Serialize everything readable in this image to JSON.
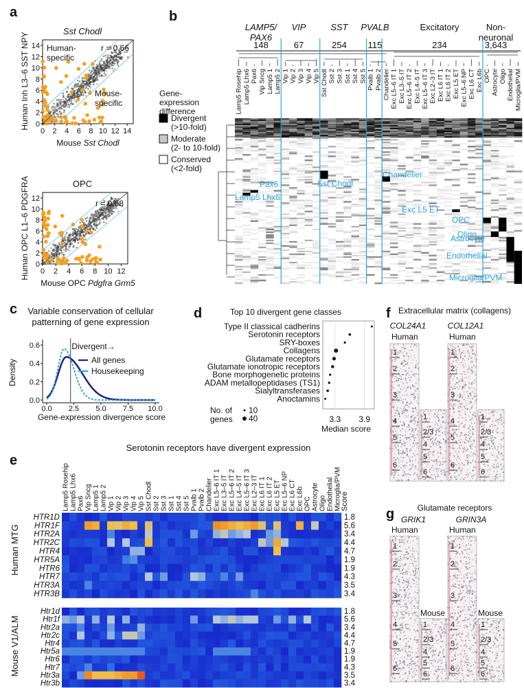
{
  "panels": {
    "a": {
      "label": "a",
      "top": {
        "title": "Sst Chodl",
        "r": "r = 0.66",
        "ylabel": "Human Inh L3–6 SST NPY",
        "xlabel_prefix": "Mouse ",
        "xlabel_italic": "Sst Chodl",
        "human_specific": "Human-\nspecific",
        "mouse_specific": "Mouse-\nspecific",
        "ticks": [
          "0",
          "2",
          "4",
          "6",
          "8",
          "10",
          "12",
          "14"
        ]
      },
      "bottom": {
        "title": "OPC",
        "r": "r = 0.68",
        "ylabel": "Human OPC L1–6 PDGFRA",
        "xlabel_prefix": "Mouse OPC ",
        "xlabel_italic": "Pdgfra Grm5",
        "ticks": [
          "0",
          "2",
          "4",
          "6",
          "8",
          "10",
          "12"
        ]
      }
    },
    "b": {
      "label": "b",
      "groups": [
        {
          "name": "LAMP5/\nPAX6",
          "count": "148"
        },
        {
          "name": "VIP",
          "count": "67"
        },
        {
          "name": "SST",
          "count": "254"
        },
        {
          "name": "PVALB",
          "count": "115"
        },
        {
          "name": "Excitatory",
          "count": "234"
        },
        {
          "name": "Non-\nneuronal",
          "count": "3,643"
        }
      ],
      "columns": [
        "Lamp5 Rosehip",
        "Lamp5 Lhx6",
        "Pax6",
        "Vip Sncg",
        "Lamp5 1",
        "Lamp5 2",
        "Vip 1",
        "Vip 2",
        "Vip 3",
        "Vip 4",
        "Vip 5",
        "Sst Chodl",
        "Sst 2",
        "Sst 3",
        "Sst 1",
        "Sst 4",
        "Sst 5",
        "Pvalb 1",
        "Pvalb 2",
        "Chandelier",
        "Exc L5–6 IT 1",
        "Exc L3–5 IT",
        "Exc L5–6 IT 2",
        "Exc L4–5 IT",
        "Exc L5–6 IT 3",
        "Exc L2–3 IT",
        "Exc L6 IT 1",
        "Exc L6 IT 2",
        "Exc L5 ET",
        "Exc L5–6 NP",
        "Exc L6 CT",
        "Exc L6b",
        "OPC",
        "Astrocyte",
        "Oligo",
        "Endothelial",
        "Microglia/PVM"
      ],
      "legend_title": "Gene-\nexpression\ndifference",
      "legend": [
        {
          "label": "Divergent\n(>10-fold)",
          "color": "#000000"
        },
        {
          "label": "Moderate\n(2- to 10-fold)",
          "color": "#c8c8c8"
        },
        {
          "label": "Conserved\n(<2-fold)",
          "color": "#ffffff"
        }
      ],
      "annotations": [
        "Sst Chodl",
        "Chandelier",
        "Pax6",
        "Lamp5 Lhx6",
        "Exc L5 ET",
        "OPC",
        "Oligo",
        "Astrocyte",
        "Endothelial",
        "Microglia/PVM"
      ],
      "annotation_color": "#2aa5e0"
    },
    "c": {
      "label": "c",
      "title": "Variable conservation of cellular\npatterning of gene expression",
      "ylabel": "Density",
      "xlabel": "Gene-expression divergence score",
      "xticks": [
        "0.0",
        "2.5",
        "5.0",
        "7.5",
        "10.0"
      ],
      "yticks": [
        "0.0",
        "0.2",
        "0.4",
        "0.6"
      ],
      "divergent": "Divergent→",
      "legend": [
        {
          "label": "All genes",
          "color": "#1a237e"
        },
        {
          "label": "Housekeeping",
          "color": "#2aa5e0"
        }
      ]
    },
    "d": {
      "label": "d",
      "title": "Top 10 divergent gene classes",
      "classes": [
        "Type II classical cadherins",
        "Serotonin receptors",
        "SRY-boxes",
        "Collagens",
        "Glutamate receptors",
        "Glutamate ionotropic receptors",
        "Bone morphogenetic proteins",
        "ADAM metallopeptidases (TS1)",
        "Sialyltransferases",
        "Anoctamins"
      ],
      "xlabel": "Median score",
      "xticks": [
        "3.3",
        "3.9"
      ],
      "size_legend_title": "No. of\ngenes",
      "size_legend": [
        "10",
        "40"
      ]
    },
    "e": {
      "label": "e",
      "title": "Serotonin receptors have divergent expression",
      "score_header": "Score",
      "human_label": "Human MTG",
      "mouse_label": "Mouse V1/ALM",
      "human_genes": [
        "HTR1D",
        "HTR1F",
        "HTR2A",
        "HTR2C",
        "HTR4",
        "HTR5A",
        "HTR6",
        "HTR7",
        "HTR3A",
        "HTR3B"
      ],
      "mouse_genes": [
        "Htr1d",
        "Htr1f",
        "Htr2a",
        "Htr2c",
        "Htr4",
        "Htr5a",
        "Htr6",
        "Htr7",
        "Htr3a",
        "Htr3b"
      ],
      "scores": [
        "1.8",
        "5.6",
        "3.4",
        "4.4",
        "4.7",
        "1.9",
        "1.9",
        "4.3",
        "3.5",
        "3.4"
      ]
    },
    "f": {
      "label": "f",
      "title": "Extracellular matrix (collagens)",
      "genes": [
        "COL24A1",
        "COL12A1"
      ],
      "human": "Human",
      "mouse": "Mouse",
      "human_layers": [
        "1",
        "2",
        "3",
        "4",
        "5",
        "6"
      ],
      "mouse_layers": [
        "1",
        "2/3",
        "4",
        "5",
        "6"
      ]
    },
    "g": {
      "label": "g",
      "title": "Glutamate receptors",
      "genes": [
        "GRIK1",
        "GRIN3A"
      ],
      "human": "Human",
      "mouse": "Mouse",
      "human_layers": [
        "1",
        "2",
        "3",
        "4",
        "5",
        "6"
      ],
      "mouse_layers": [
        "1",
        "2/3",
        "4",
        "5",
        "6"
      ]
    }
  }
}
